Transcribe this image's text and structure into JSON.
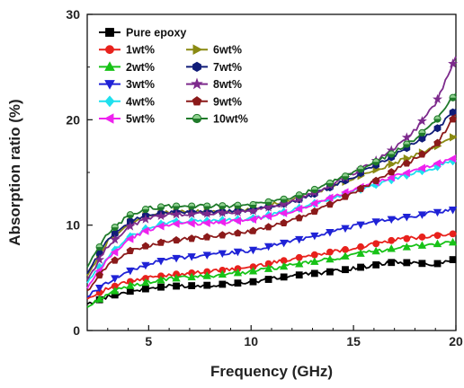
{
  "chart_data": {
    "type": "line",
    "xlabel": "Frequency (GHz)",
    "ylabel": "Absorption ratio (%)",
    "xlim": [
      2,
      20
    ],
    "ylim": [
      0,
      30
    ],
    "x_ticks": [
      "5",
      "10",
      "15",
      "20"
    ],
    "y_ticks": [
      "0",
      "10",
      "20",
      "30"
    ],
    "grid": false,
    "legend_placement": "top-left",
    "series": [
      {
        "name": "Pure epoxy",
        "color": "#000000",
        "marker": "square",
        "knots": [
          [
            2,
            2.5
          ],
          [
            3,
            3.2
          ],
          [
            4,
            3.7
          ],
          [
            5,
            4.0
          ],
          [
            6,
            4.2
          ],
          [
            8,
            4.3
          ],
          [
            10,
            4.6
          ],
          [
            12,
            5.2
          ],
          [
            14,
            5.6
          ],
          [
            15,
            5.9
          ],
          [
            16,
            6.2
          ],
          [
            17,
            6.5
          ],
          [
            18,
            6.4
          ],
          [
            19,
            6.3
          ],
          [
            20,
            6.8
          ]
        ]
      },
      {
        "name": "1wt%",
        "color": "#e8211c",
        "marker": "circle",
        "knots": [
          [
            2,
            3.0
          ],
          [
            3,
            4.0
          ],
          [
            4,
            4.6
          ],
          [
            5,
            5.0
          ],
          [
            6,
            5.3
          ],
          [
            8,
            5.6
          ],
          [
            10,
            6.0
          ],
          [
            12,
            6.8
          ],
          [
            14,
            7.5
          ],
          [
            15,
            7.8
          ],
          [
            16,
            8.2
          ],
          [
            17,
            8.6
          ],
          [
            18,
            8.8
          ],
          [
            19,
            9.0
          ],
          [
            20,
            9.2
          ]
        ]
      },
      {
        "name": "2wt%",
        "color": "#17c217",
        "marker": "triangle-up",
        "knots": [
          [
            2,
            2.2
          ],
          [
            3,
            3.5
          ],
          [
            4,
            4.2
          ],
          [
            5,
            4.6
          ],
          [
            6,
            4.9
          ],
          [
            8,
            5.2
          ],
          [
            10,
            5.6
          ],
          [
            12,
            6.2
          ],
          [
            14,
            6.8
          ],
          [
            15,
            7.2
          ],
          [
            16,
            7.5
          ],
          [
            17,
            7.8
          ],
          [
            18,
            8.0
          ],
          [
            19,
            8.2
          ],
          [
            20,
            8.4
          ]
        ]
      },
      {
        "name": "3wt%",
        "color": "#1f22d6",
        "marker": "triangle-down",
        "knots": [
          [
            2,
            3.2
          ],
          [
            3,
            4.6
          ],
          [
            4,
            5.6
          ],
          [
            5,
            6.3
          ],
          [
            6,
            6.8
          ],
          [
            8,
            7.2
          ],
          [
            10,
            7.6
          ],
          [
            12,
            8.5
          ],
          [
            14,
            9.4
          ],
          [
            15,
            9.9
          ],
          [
            16,
            10.3
          ],
          [
            17,
            10.6
          ],
          [
            18,
            10.9
          ],
          [
            19,
            11.2
          ],
          [
            20,
            11.5
          ]
        ]
      },
      {
        "name": "4wt%",
        "color": "#1ee0ee",
        "marker": "diamond",
        "knots": [
          [
            2,
            4.5
          ],
          [
            3,
            7.0
          ],
          [
            4,
            8.8
          ],
          [
            5,
            9.8
          ],
          [
            6,
            10.3
          ],
          [
            8,
            10.4
          ],
          [
            10,
            10.6
          ],
          [
            12,
            11.4
          ],
          [
            13,
            12.0
          ],
          [
            14,
            12.6
          ],
          [
            15,
            13.2
          ],
          [
            16,
            13.8
          ],
          [
            17,
            14.4
          ],
          [
            18,
            15.0
          ],
          [
            19,
            15.5
          ],
          [
            20,
            16.2
          ]
        ]
      },
      {
        "name": "5wt%",
        "color": "#ee22ee",
        "marker": "triangle-left",
        "knots": [
          [
            2,
            4.0
          ],
          [
            3,
            6.8
          ],
          [
            4,
            8.6
          ],
          [
            5,
            9.6
          ],
          [
            6,
            10.1
          ],
          [
            8,
            10.2
          ],
          [
            10,
            10.5
          ],
          [
            12,
            11.3
          ],
          [
            13,
            12.0
          ],
          [
            14,
            12.7
          ],
          [
            15,
            13.4
          ],
          [
            16,
            14.0
          ],
          [
            17,
            14.6
          ],
          [
            18,
            15.2
          ],
          [
            19,
            15.8
          ],
          [
            20,
            16.4
          ]
        ]
      },
      {
        "name": "6wt%",
        "color": "#8a8a12",
        "marker": "triangle-right",
        "knots": [
          [
            2,
            5.2
          ],
          [
            3,
            8.5
          ],
          [
            4,
            10.2
          ],
          [
            5,
            11.0
          ],
          [
            6,
            11.2
          ],
          [
            8,
            11.3
          ],
          [
            10,
            11.5
          ],
          [
            11,
            12.0
          ],
          [
            12,
            12.4
          ],
          [
            13,
            13.0
          ],
          [
            14,
            13.7
          ],
          [
            15,
            14.4
          ],
          [
            16,
            15.2
          ],
          [
            17,
            15.9
          ],
          [
            18,
            16.6
          ],
          [
            19,
            17.4
          ],
          [
            20,
            18.5
          ]
        ]
      },
      {
        "name": "7wt%",
        "color": "#101c78",
        "marker": "hexagon",
        "knots": [
          [
            2,
            5.4
          ],
          [
            3,
            8.6
          ],
          [
            4,
            10.3
          ],
          [
            5,
            11.0
          ],
          [
            6,
            11.2
          ],
          [
            8,
            11.2
          ],
          [
            10,
            11.4
          ],
          [
            12,
            12.2
          ],
          [
            13,
            12.9
          ],
          [
            14,
            13.7
          ],
          [
            15,
            14.6
          ],
          [
            16,
            15.6
          ],
          [
            17,
            16.6
          ],
          [
            18,
            17.8
          ],
          [
            19,
            19.0
          ],
          [
            20,
            21.0
          ]
        ]
      },
      {
        "name": "8wt%",
        "color": "#7d2a8c",
        "marker": "star",
        "knots": [
          [
            2,
            4.8
          ],
          [
            3,
            8.0
          ],
          [
            4,
            9.8
          ],
          [
            5,
            10.7
          ],
          [
            6,
            11.0
          ],
          [
            8,
            11.1
          ],
          [
            10,
            11.3
          ],
          [
            12,
            12.2
          ],
          [
            13,
            13.0
          ],
          [
            14,
            13.9
          ],
          [
            15,
            14.9
          ],
          [
            16,
            16.0
          ],
          [
            17,
            17.3
          ],
          [
            18,
            19.0
          ],
          [
            19,
            21.5
          ],
          [
            20,
            26.0
          ]
        ]
      },
      {
        "name": "9wt%",
        "color": "#8b1a1a",
        "marker": "pentagon",
        "knots": [
          [
            2,
            3.8
          ],
          [
            3,
            6.2
          ],
          [
            4,
            7.5
          ],
          [
            5,
            8.1
          ],
          [
            6,
            8.5
          ],
          [
            8,
            8.9
          ],
          [
            10,
            9.4
          ],
          [
            12,
            10.4
          ],
          [
            13,
            11.2
          ],
          [
            14,
            12.1
          ],
          [
            15,
            13.1
          ],
          [
            16,
            14.1
          ],
          [
            17,
            15.2
          ],
          [
            18,
            16.3
          ],
          [
            19,
            17.5
          ],
          [
            20,
            20.5
          ]
        ]
      },
      {
        "name": "10wt%",
        "color": "#1f7a2a",
        "marker": "circle-half",
        "knots": [
          [
            2,
            6.0
          ],
          [
            3,
            9.2
          ],
          [
            4,
            10.9
          ],
          [
            5,
            11.6
          ],
          [
            6,
            11.8
          ],
          [
            8,
            11.8
          ],
          [
            10,
            11.9
          ],
          [
            12,
            12.6
          ],
          [
            13,
            13.3
          ],
          [
            14,
            14.1
          ],
          [
            15,
            15.0
          ],
          [
            16,
            15.9
          ],
          [
            17,
            16.9
          ],
          [
            18,
            18.2
          ],
          [
            19,
            19.8
          ],
          [
            20,
            22.5
          ]
        ]
      }
    ]
  }
}
